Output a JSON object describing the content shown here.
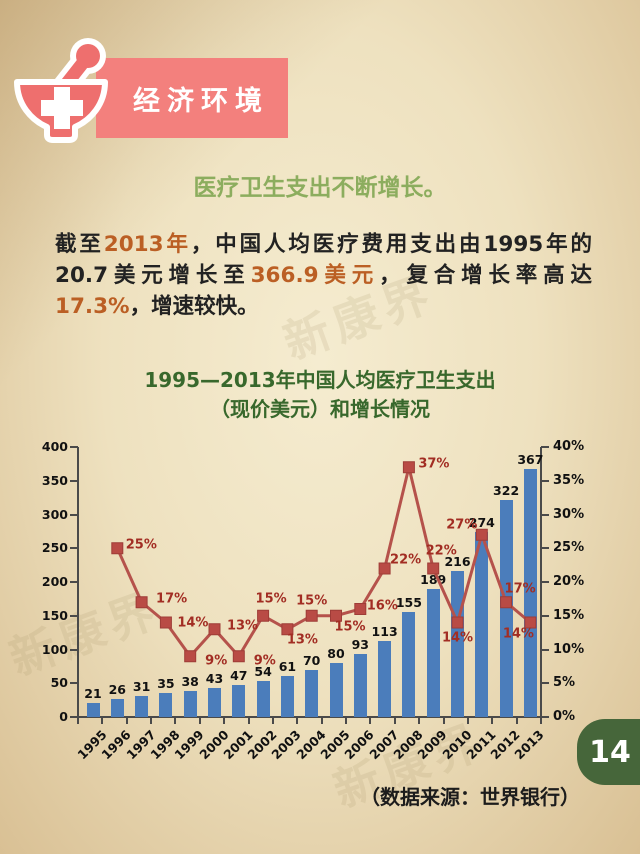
{
  "header": {
    "banner_label": "经济环境",
    "banner_color": "#f3807d",
    "icon": "mortar-pestle-cross-icon"
  },
  "heading": {
    "text": "医疗卫生支出不断增长。",
    "color": "#8cad5e"
  },
  "paragraph": {
    "highlight_color": "#bb5f24",
    "segments": [
      {
        "text": "截至",
        "highlight": false
      },
      {
        "text": "2013年",
        "highlight": true
      },
      {
        "text": "，中国人均医疗费用支出由1995年的20.7美元增长至",
        "highlight": false
      },
      {
        "text": "366.9美元",
        "highlight": true
      },
      {
        "text": "，复合增长率高达",
        "highlight": false
      },
      {
        "text": "17.3%",
        "highlight": true
      },
      {
        "text": "，增速较快。",
        "highlight": false
      }
    ]
  },
  "chart_title": {
    "line1": "1995—2013年中国人均医疗卫生支出",
    "line2": "（现价美元）和增长情况"
  },
  "chart_data": {
    "type": "bar+line",
    "title": "1995—2013年中国人均医疗卫生支出（现价美元）和增长情况",
    "categories": [
      "1995",
      "1996",
      "1997",
      "1998",
      "1999",
      "2000",
      "2001",
      "2002",
      "2003",
      "2004",
      "2005",
      "2006",
      "2007",
      "2008",
      "2009",
      "2010",
      "2011",
      "2012",
      "2013"
    ],
    "series": [
      {
        "type": "bar",
        "axis": "left",
        "color": "#4b7dbb",
        "values": [
          21,
          26,
          31,
          35,
          38,
          43,
          47,
          54,
          61,
          70,
          80,
          93,
          113,
          155,
          189,
          216,
          274,
          322,
          367
        ],
        "data_labels": [
          "21",
          "26",
          "31",
          "35",
          "38",
          "43",
          "47",
          "54",
          "61",
          "70",
          "80",
          "93",
          "113",
          "155",
          "189",
          "216",
          "274",
          "322",
          "367"
        ]
      },
      {
        "type": "line",
        "axis": "right",
        "color": "#b5524b",
        "marker": "square",
        "values": [
          null,
          25,
          17,
          14,
          9,
          13,
          9,
          15,
          13,
          15,
          15,
          16,
          22,
          37,
          22,
          14,
          27,
          17,
          14
        ],
        "data_labels": [
          null,
          "25%",
          "17%",
          "14%",
          "9%",
          "13%",
          "9%",
          "15%",
          "13%",
          "15%",
          "15%",
          "16%",
          "22%",
          "37%",
          "22%",
          "14%",
          "27%",
          "17%",
          "14%"
        ]
      }
    ],
    "left_axis": {
      "min": 0,
      "max": 400,
      "step": 50,
      "ticks": [
        "0",
        "50",
        "100",
        "150",
        "200",
        "250",
        "300",
        "350",
        "400"
      ]
    },
    "right_axis": {
      "min": 0,
      "max": 40,
      "step": 5,
      "ticks": [
        "0%",
        "5%",
        "10%",
        "15%",
        "20%",
        "25%",
        "30%",
        "35%",
        "40%"
      ]
    },
    "grid": false,
    "legend": false
  },
  "source_note": "（数据来源：世界银行）",
  "page_number": "14",
  "watermark": "新康界"
}
